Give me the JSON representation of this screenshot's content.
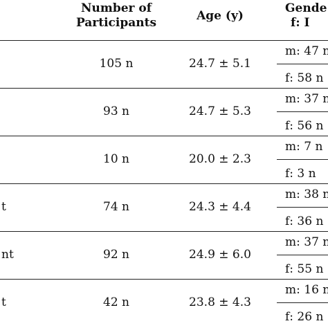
{
  "header": {
    "participants_line1": "Number of",
    "participants_line2": "Participants",
    "age": "Age (y)",
    "gender_line1": "Gende",
    "gender_line2": "f: I"
  },
  "rows": [
    {
      "label": "",
      "participants": "105 n",
      "age": "24.7 ± 5.1",
      "gender_m": "m: 47 n",
      "gender_f": "f: 58 n"
    },
    {
      "label": "",
      "participants": "93 n",
      "age": "24.7 ± 5.3",
      "gender_m": "m: 37 n",
      "gender_f": "f: 56 n"
    },
    {
      "label": "",
      "participants": "10 n",
      "age": "20.0 ± 2.3",
      "gender_m": "m: 7 n",
      "gender_f": "f: 3 n"
    },
    {
      "label": "t",
      "participants": "74 n",
      "age": "24.3 ± 4.4",
      "gender_m": "m: 38 n",
      "gender_f": "f: 36 n"
    },
    {
      "label": "nt",
      "participants": "92 n",
      "age": "24.9 ± 6.0",
      "gender_m": "m: 37 n",
      "gender_f": "f: 55 n"
    },
    {
      "label": "t",
      "participants": "42 n",
      "age": "23.8 ± 4.3",
      "gender_m": "m: 16 n",
      "gender_f": "f: 26 n"
    }
  ]
}
